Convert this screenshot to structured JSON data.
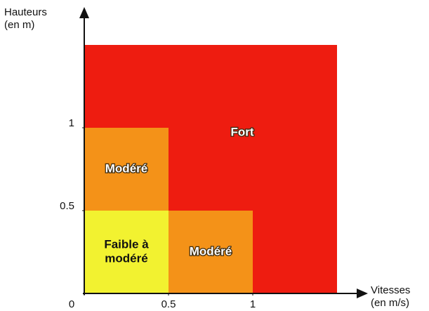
{
  "chart_data": {
    "type": "zones",
    "y_axis_label": [
      "Hauteurs",
      "(en m)"
    ],
    "x_axis_label": [
      "Vitesses",
      "(en m/s)"
    ],
    "xlim": [
      0,
      1.5
    ],
    "ylim": [
      0,
      1.5
    ],
    "xticks": [
      0,
      0.5,
      1
    ],
    "yticks": [
      0.5,
      1
    ],
    "zones": [
      {
        "label": [
          "Fort"
        ],
        "color": "#ee1c10",
        "x": [
          0,
          1.5
        ],
        "y": [
          0,
          1.5
        ]
      },
      {
        "label": [
          "Modéré"
        ],
        "color": "#f49218",
        "x": [
          0,
          0.5
        ],
        "y": [
          0.5,
          1
        ]
      },
      {
        "label": [
          "Faible à",
          "modéré"
        ],
        "color": "#f2f230",
        "x": [
          0,
          0.5
        ],
        "y": [
          0,
          0.5
        ]
      },
      {
        "label": [
          "Modéré"
        ],
        "color": "#f49218",
        "x": [
          0.5,
          1
        ],
        "y": [
          0,
          0.5
        ]
      }
    ]
  }
}
